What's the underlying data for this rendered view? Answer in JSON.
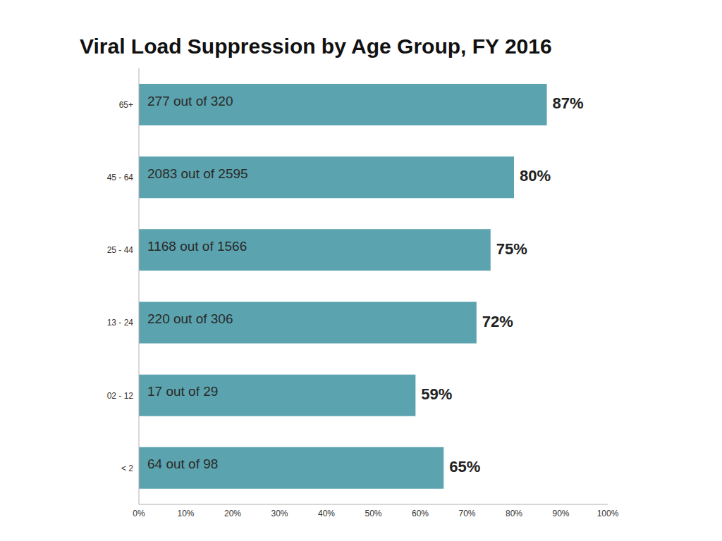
{
  "chart_data": {
    "type": "bar",
    "title": "Viral Load Suppression by Age Group, FY 2016",
    "orientation": "horizontal",
    "categories": [
      "65+",
      "45 - 64",
      "25 - 44",
      "13 - 24",
      "02 - 12",
      "< 2"
    ],
    "values": [
      87,
      80,
      75,
      72,
      59,
      65
    ],
    "value_labels": [
      "87%",
      "80%",
      "75%",
      "72%",
      "59%",
      "65%"
    ],
    "annotations": [
      "277 out of 320",
      "2083 out of 2595",
      "1168 out of 1566",
      "220 out of 306",
      "17 out of 29",
      "64 out of 98"
    ],
    "color": "#5ba3ae",
    "xlim": [
      0,
      100
    ],
    "xticks": [
      {
        "value": 0,
        "label": "0%"
      },
      {
        "value": 10,
        "label": "10%"
      },
      {
        "value": 20,
        "label": "20%"
      },
      {
        "value": 30,
        "label": "30%"
      },
      {
        "value": 40,
        "label": "40%"
      },
      {
        "value": 50,
        "label": "50%"
      },
      {
        "value": 60,
        "label": "60%"
      },
      {
        "value": 70,
        "label": "70%"
      },
      {
        "value": 80,
        "label": "80%"
      },
      {
        "value": 90,
        "label": "90%"
      },
      {
        "value": 100,
        "label": "100%"
      }
    ],
    "data_labels": true,
    "grid": false
  }
}
